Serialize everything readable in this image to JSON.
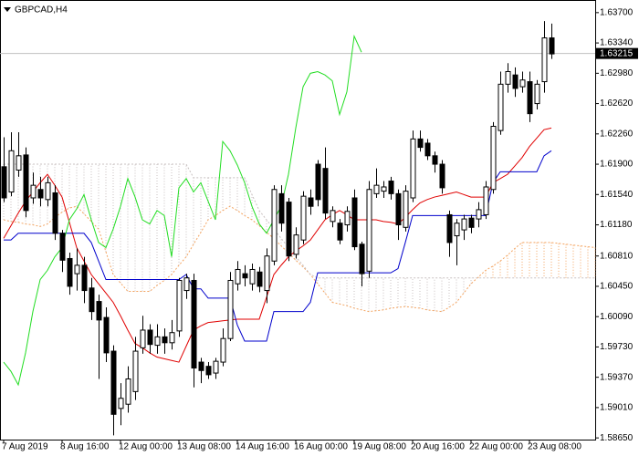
{
  "chart_data": {
    "type": "candlestick",
    "title": "GBPCAD,H4",
    "categories": [
      "7 Aug 2019",
      null,
      null,
      null,
      null,
      null,
      null,
      null,
      "8 Aug 16:00",
      null,
      null,
      null,
      null,
      null,
      null,
      null,
      "12 Aug 00:00",
      null,
      null,
      null,
      null,
      null,
      null,
      null,
      "13 Aug 08:00",
      null,
      null,
      null,
      null,
      null,
      null,
      null,
      "14 Aug 16:00",
      null,
      null,
      null,
      null,
      null,
      null,
      null,
      "16 Aug 00:00",
      null,
      null,
      null,
      null,
      null,
      null,
      null,
      "19 Aug 08:00",
      null,
      null,
      null,
      null,
      null,
      null,
      null,
      "20 Aug 16:00",
      null,
      null,
      null,
      null,
      null,
      null,
      null,
      "22 Aug 00:00",
      null,
      null,
      null,
      null,
      null,
      null,
      null,
      "23 Aug 08:00",
      null,
      null,
      null,
      null,
      null,
      null,
      null,
      null,
      null
    ],
    "open": [
      1.6187,
      1.6157,
      1.6183,
      1.6201,
      1.615,
      1.616,
      1.6148,
      1.6156,
      1.6108,
      1.6078,
      1.606,
      1.607,
      1.6043,
      1.6027,
      1.6008,
      1.5968,
      1.59,
      1.5905,
      1.592,
      1.5972,
      1.5993,
      1.5975,
      1.5985,
      1.5978,
      1.5992,
      1.604,
      1.6052,
      1.5955,
      1.595,
      1.5942,
      1.5955,
      1.5983,
      1.6048,
      1.606,
      1.6048,
      1.6062,
      1.604,
      1.6075,
      1.6155,
      1.6145,
      1.6083,
      1.61,
      1.615,
      1.619,
      1.6185,
      1.6122,
      1.612,
      1.6118,
      1.615,
      1.6095,
      1.6063,
      1.6155,
      1.6158,
      1.617,
      1.6155,
      1.6115,
      1.615,
      1.622,
      1.6215,
      1.62,
      1.619,
      1.613,
      1.6105,
      1.6112,
      1.6126,
      1.6125,
      1.613,
      1.616,
      1.623,
      1.6285,
      1.6296,
      1.6282,
      1.6288,
      1.6262,
      1.6288,
      1.634,
      null,
      null,
      null,
      null,
      null,
      null
    ],
    "high": [
      1.6222,
      1.6228,
      1.6228,
      1.621,
      1.618,
      1.6175,
      1.6175,
      1.6165,
      1.6112,
      1.6085,
      1.609,
      1.608,
      1.6055,
      1.6035,
      1.602,
      1.5975,
      1.593,
      1.595,
      1.5985,
      1.601,
      1.6,
      1.6,
      1.5995,
      1.6005,
      1.6055,
      1.606,
      1.606,
      1.596,
      1.5955,
      1.596,
      1.5995,
      1.6062,
      1.6075,
      1.607,
      1.6072,
      1.6068,
      1.609,
      1.6165,
      1.6165,
      1.615,
      1.6115,
      1.6158,
      1.616,
      1.6195,
      1.621,
      1.614,
      1.6125,
      1.614,
      1.616,
      1.6098,
      1.617,
      1.6185,
      1.617,
      1.6175,
      1.616,
      1.6165,
      1.623,
      1.623,
      1.622,
      1.6205,
      1.6195,
      1.6135,
      1.6125,
      1.613,
      1.613,
      1.6145,
      1.617,
      1.624,
      1.63,
      1.631,
      1.6305,
      1.63,
      1.63,
      1.629,
      1.636,
      1.6357,
      null,
      null,
      null,
      null,
      null,
      null
    ],
    "low": [
      1.6145,
      1.6152,
      1.6175,
      1.6127,
      1.6143,
      1.614,
      1.614,
      1.61,
      1.6062,
      1.6035,
      1.604,
      1.6025,
      1.6005,
      1.5935,
      1.5955,
      1.5868,
      1.588,
      1.5895,
      1.591,
      1.5965,
      1.5965,
      1.5965,
      1.5965,
      1.597,
      1.5985,
      1.603,
      1.5925,
      1.593,
      1.5935,
      1.5935,
      1.595,
      1.598,
      1.604,
      1.6045,
      1.604,
      1.6038,
      1.6025,
      1.607,
      1.611,
      1.6075,
      1.6078,
      1.6095,
      1.613,
      1.614,
      1.6125,
      1.6115,
      1.6095,
      1.611,
      1.6088,
      1.6045,
      1.6055,
      1.615,
      1.615,
      1.6148,
      1.61,
      1.611,
      1.6145,
      1.6205,
      1.6195,
      1.618,
      1.6155,
      1.608,
      1.607,
      1.61,
      1.6108,
      1.6115,
      1.6125,
      1.6155,
      1.6225,
      1.6275,
      1.627,
      1.6275,
      1.624,
      1.6255,
      1.6275,
      1.6315,
      null,
      null,
      null,
      null,
      null,
      null
    ],
    "close": [
      1.615,
      1.6206,
      1.62,
      1.6135,
      1.6165,
      1.615,
      1.6168,
      1.6108,
      1.6076,
      1.6045,
      1.607,
      1.604,
      1.6015,
      1.6005,
      1.5966,
      1.5893,
      1.5912,
      1.5935,
      1.5968,
      1.5993,
      1.5976,
      1.5985,
      1.5978,
      1.599,
      1.6052,
      1.6055,
      1.5948,
      1.5945,
      1.594,
      1.5956,
      1.5983,
      1.6052,
      1.6065,
      1.6055,
      1.6065,
      1.6045,
      1.6081,
      1.616,
      1.612,
      1.6081,
      1.6106,
      1.6152,
      1.614,
      1.6148,
      1.6132,
      1.6135,
      1.61,
      1.6134,
      1.6092,
      1.606,
      1.616,
      1.6165,
      1.6163,
      1.6155,
      1.6118,
      1.6158,
      1.622,
      1.621,
      1.62,
      1.619,
      1.6162,
      1.6097,
      1.612,
      1.6125,
      1.6115,
      1.6136,
      1.6163,
      1.6235,
      1.6285,
      1.63,
      1.628,
      1.629,
      1.625,
      1.6285,
      1.634,
      1.6321,
      null,
      null,
      null,
      null,
      null,
      null
    ],
    "up_color": "#ffffff",
    "down_color": "#000000",
    "lines": [
      {
        "color": "#e00000",
        "values": [
          1.6102,
          1.6117,
          1.6132,
          1.6146,
          1.6157,
          1.6168,
          1.6178,
          1.6165,
          1.6151,
          1.6121,
          1.6091,
          1.6075,
          1.6059,
          1.6048,
          1.6037,
          1.6026,
          1.601,
          1.5993,
          1.5977,
          1.5972,
          1.5966,
          1.5961,
          1.5959,
          1.5957,
          1.5955,
          1.5974,
          1.5993,
          1.5998,
          1.6002,
          1.6003,
          1.6004,
          1.6005,
          1.6006,
          1.6006,
          1.6006,
          1.6006,
          1.6032,
          1.6059,
          1.607,
          1.608,
          1.6087,
          1.6093,
          1.61,
          1.6112,
          1.6124,
          1.613,
          1.6135,
          1.613,
          1.6124,
          1.6124,
          1.6124,
          1.6124,
          1.6122,
          1.6121,
          1.6119,
          1.6127,
          1.6136,
          1.6144,
          1.6148,
          1.6151,
          1.6153,
          1.6155,
          1.6157,
          1.6154,
          1.6151,
          1.6151,
          1.6151,
          1.6168,
          1.6173,
          1.6178,
          1.6188,
          1.6198,
          1.6211,
          1.6221,
          1.6231,
          1.6233,
          null,
          null,
          null,
          null,
          null,
          null
        ]
      },
      {
        "color": "#0000cc",
        "values": [
          1.61,
          1.61,
          1.6108,
          1.6108,
          1.6108,
          1.6108,
          1.6108,
          1.6108,
          1.6108,
          1.6108,
          1.6108,
          1.6108,
          1.6097,
          1.6075,
          1.6053,
          1.6053,
          1.6053,
          1.6053,
          1.6053,
          1.6053,
          1.6053,
          1.6053,
          1.6053,
          1.6053,
          1.6053,
          1.6059,
          1.6042,
          1.6042,
          1.6031,
          1.6031,
          1.6031,
          1.6031,
          1.5999,
          1.598,
          1.598,
          1.598,
          1.598,
          1.6015,
          1.6015,
          1.6015,
          1.6015,
          1.6015,
          1.6026,
          1.6061,
          1.6061,
          1.6061,
          1.6061,
          1.6061,
          1.6061,
          1.6061,
          1.6061,
          1.6061,
          1.6061,
          1.6061,
          1.6066,
          1.6097,
          1.6129,
          1.6129,
          1.6129,
          1.6129,
          1.6129,
          1.6129,
          1.6129,
          1.6129,
          1.6129,
          1.6129,
          1.6129,
          1.6168,
          1.6181,
          1.6181,
          1.6181,
          1.6181,
          1.6181,
          1.6181,
          1.62,
          1.6206,
          null,
          null,
          null,
          null,
          null,
          null
        ]
      },
      {
        "color": "#22dd22",
        "values": [
          1.5955,
          1.5944,
          1.5928,
          1.5966,
          1.6015,
          1.6053,
          1.6064,
          1.608,
          1.6091,
          1.6124,
          1.6137,
          1.6154,
          1.6124,
          1.6097,
          1.6091,
          1.6113,
          1.614,
          1.6173,
          1.6151,
          1.6124,
          1.6119,
          1.6135,
          1.6129,
          1.608,
          1.6162,
          1.6173,
          1.6157,
          1.6168,
          1.6146,
          1.6124,
          1.6217,
          1.6206,
          1.6189,
          1.6168,
          1.614,
          1.6119,
          1.6108,
          1.6124,
          1.614,
          1.6178,
          1.6233,
          1.6282,
          1.6298,
          1.63,
          1.6296,
          1.6289,
          1.6249,
          1.6276,
          1.6342,
          1.6323,
          null,
          null,
          null,
          null,
          null,
          null,
          null,
          null,
          null,
          null,
          null,
          null,
          null,
          null,
          null,
          null,
          null,
          null,
          null,
          null,
          null,
          null,
          null,
          null,
          null,
          null,
          null,
          null,
          null,
          null,
          null,
          null
        ]
      }
    ],
    "cloud": {
      "a": {
        "color": "#f4a460",
        "values": [
          1.6124,
          1.6122,
          1.6121,
          1.6119,
          1.6118,
          1.6116,
          1.6119,
          1.6127,
          1.6133,
          1.6138,
          1.614,
          1.6131,
          1.6122,
          1.6113,
          1.6086,
          1.6059,
          1.6049,
          1.6039,
          1.6039,
          1.6039,
          1.6039,
          1.6046,
          1.6052,
          1.6059,
          1.607,
          1.608,
          1.6095,
          1.6109,
          1.6124,
          1.6129,
          1.6135,
          1.614,
          1.6135,
          1.6129,
          1.6124,
          1.6117,
          1.6109,
          1.6102,
          1.6093,
          1.6085,
          1.6076,
          1.6068,
          1.6059,
          1.6048,
          1.6037,
          1.6026,
          1.6024,
          1.6022,
          1.6019,
          1.6017,
          1.6015,
          1.6016,
          1.6017,
          1.6019,
          1.602,
          1.6021,
          1.602,
          1.6019,
          1.6017,
          1.6016,
          1.6015,
          1.602,
          1.6026,
          1.6037,
          1.6048,
          1.6056,
          1.6064,
          1.6069,
          1.6075,
          1.6082,
          1.609,
          1.6097,
          1.6097,
          1.6097,
          1.6097,
          1.6097,
          1.6096,
          1.6095,
          1.6094,
          1.6093,
          1.6092,
          1.6091
        ]
      },
      "b": {
        "color": "#c8c0c0",
        "values": [
          1.619,
          1.619,
          1.619,
          1.619,
          1.619,
          1.619,
          1.619,
          1.619,
          1.619,
          1.619,
          1.619,
          1.619,
          1.619,
          1.619,
          1.619,
          1.619,
          1.619,
          1.619,
          1.619,
          1.619,
          1.619,
          1.619,
          1.619,
          1.619,
          1.619,
          1.619,
          1.6174,
          1.6174,
          1.6174,
          1.6174,
          1.6174,
          1.6174,
          1.6174,
          1.6174,
          1.6154,
          1.6135,
          1.6124,
          1.6113,
          1.6102,
          1.6091,
          1.608,
          1.607,
          1.6059,
          1.6055,
          1.6055,
          1.6055,
          1.6055,
          1.6055,
          1.6055,
          1.6055,
          1.6055,
          1.6055,
          1.6055,
          1.6055,
          1.6055,
          1.6055,
          1.6055,
          1.6055,
          1.6055,
          1.6055,
          1.6055,
          1.6055,
          1.6055,
          1.6055,
          1.6055,
          1.6055,
          1.6055,
          1.6055,
          1.6055,
          1.6055,
          1.6055,
          1.6055,
          1.6055,
          1.6055,
          1.6055,
          1.6055,
          1.6055,
          1.6055,
          1.6055,
          1.6055,
          1.6055,
          1.6055
        ]
      }
    },
    "last_price": 1.63215,
    "ylim": [
      1.5863,
      1.6385
    ],
    "yticks": [
      {
        "value": 1.637,
        "label": "1.63700"
      },
      {
        "value": 1.6334,
        "label": "1.63340"
      },
      {
        "value": 1.6298,
        "label": "1.62980"
      },
      {
        "value": 1.6262,
        "label": "1.62620"
      },
      {
        "value": 1.6226,
        "label": "1.62260"
      },
      {
        "value": 1.619,
        "label": "1.61900"
      },
      {
        "value": 1.6154,
        "label": "1.61540"
      },
      {
        "value": 1.6118,
        "label": "1.61180"
      },
      {
        "value": 1.6081,
        "label": "1.60810"
      },
      {
        "value": 1.6045,
        "label": "1.60450"
      },
      {
        "value": 1.6009,
        "label": "1.60090"
      },
      {
        "value": 1.5973,
        "label": "1.59730"
      },
      {
        "value": 1.5937,
        "label": "1.59370"
      },
      {
        "value": 1.5901,
        "label": "1.59010"
      },
      {
        "value": 1.5865,
        "label": "1.58650"
      }
    ]
  }
}
